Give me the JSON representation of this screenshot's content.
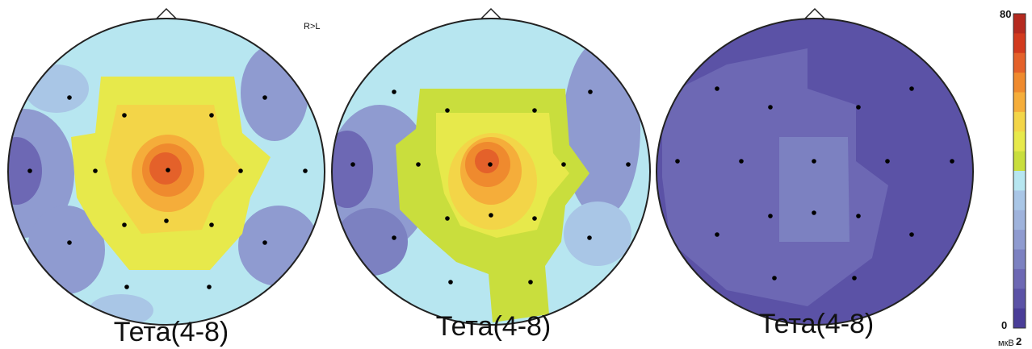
{
  "orientation_label": "R>L",
  "maps": [
    {
      "label": "Тета(4-8)"
    },
    {
      "label": "Тета(4-8)"
    },
    {
      "label": "Тета(4-8)"
    }
  ],
  "color_scale": {
    "max_label": "80",
    "min_label": "0",
    "unit_label": "мкВ",
    "unit_superscript": "2",
    "colors": [
      "#b52a1f",
      "#d23a1e",
      "#e4612a",
      "#ef8a2e",
      "#f5ad3a",
      "#f3d548",
      "#e7e94b",
      "#c9de3d",
      "#b7e6f0",
      "#a9c6e6",
      "#9fb3dc",
      "#8f9bd0",
      "#7c81c1",
      "#6d68b4",
      "#5b52a6",
      "#4a3d98"
    ]
  }
}
